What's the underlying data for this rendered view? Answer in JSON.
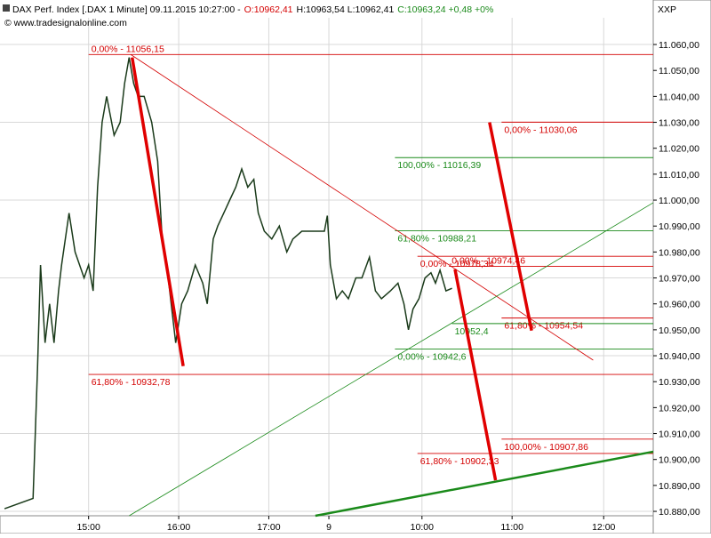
{
  "chart_data": {
    "type": "line",
    "title": "DAX Perf. Index [.DAX  1 Minute] 09.11.2015 10:27:00 -",
    "header_open": "O:10962,41",
    "header_range": "H:10963,54 L:10962,41",
    "header_close": "C:10963,24 +0,48 +0%",
    "copyright": "© www.tradesignalonline.com",
    "axis_code": "XXP",
    "x": [
      3,
      22,
      25,
      27,
      30,
      33,
      36,
      39,
      41,
      46,
      50,
      56,
      59,
      62,
      65,
      68,
      71,
      76,
      80,
      83,
      86,
      89,
      92,
      96,
      101,
      105,
      108,
      111,
      114,
      117,
      121,
      125,
      130,
      135,
      138,
      142,
      145,
      149,
      153,
      157,
      161,
      165,
      169,
      172,
      176,
      181,
      186,
      191,
      195,
      201,
      216,
      218,
      220,
      224,
      228,
      232,
      237,
      241,
      246,
      250,
      254,
      260,
      265,
      269,
      272,
      275,
      279,
      283,
      287,
      290,
      293,
      297,
      301
    ],
    "values": [
      10881,
      10885,
      10935,
      10975,
      10945,
      10960,
      10945,
      10965,
      10975,
      10995,
      10980,
      10970,
      10975,
      10965,
      11005,
      11030,
      11040,
      11025,
      11030,
      11045,
      11055,
      11045,
      11040,
      11040,
      11030,
      11015,
      10985,
      10975,
      10960,
      10945,
      10960,
      10965,
      10975,
      10968,
      10960,
      10985,
      10990,
      10995,
      11000,
      11005,
      11012,
      11005,
      11008,
      10995,
      10988,
      10985,
      10990,
      10980,
      10985,
      10988,
      10988,
      10994,
      10975,
      10962,
      10965,
      10962,
      10970,
      10970,
      10978,
      10965,
      10962,
      10965,
      10968,
      10960,
      10950,
      10958,
      10962,
      10970,
      10972,
      10968,
      10973,
      10965,
      10966
    ],
    "color": "#1a3a1a",
    "xlim": [
      0,
      435
    ],
    "ylim": [
      10878.3,
      11070.3
    ],
    "xticks": [
      {
        "value": 59,
        "label": "15:00"
      },
      {
        "value": 119,
        "label": "16:00"
      },
      {
        "value": 179,
        "label": "17:00"
      },
      {
        "value": 219,
        "label": "9"
      },
      {
        "value": 281,
        "label": "10:00"
      },
      {
        "value": 341,
        "label": "11:00"
      },
      {
        "value": 402,
        "label": "12:00"
      }
    ],
    "yticks": [
      {
        "value": 10880,
        "label": "10.880,00"
      },
      {
        "value": 10890,
        "label": "10.890,00"
      },
      {
        "value": 10900,
        "label": "10.900,00"
      },
      {
        "value": 10910,
        "label": "10.910,00"
      },
      {
        "value": 10920,
        "label": "10.920,00"
      },
      {
        "value": 10930,
        "label": "10.930,00"
      },
      {
        "value": 10940,
        "label": "10.940,00"
      },
      {
        "value": 10950,
        "label": "10.950,00"
      },
      {
        "value": 10960,
        "label": "10.960,00"
      },
      {
        "value": 10970,
        "label": "10.970,00"
      },
      {
        "value": 10980,
        "label": "10.980,00"
      },
      {
        "value": 10990,
        "label": "10.990,00"
      },
      {
        "value": 11000,
        "label": "11.000,00"
      },
      {
        "value": 11010,
        "label": "11.010,00"
      },
      {
        "value": 11020,
        "label": "11.020,00"
      },
      {
        "value": 11030,
        "label": "11.030,00"
      },
      {
        "value": 11040,
        "label": "11.040,00"
      },
      {
        "value": 11050,
        "label": "11.050,00"
      },
      {
        "value": 11060,
        "label": "11.060,00"
      }
    ],
    "grid": true,
    "levels": [
      {
        "label": "0,00% - 11056,15",
        "value": 11056.15,
        "xstart": 59,
        "color": "#d40000",
        "label_position": "above"
      },
      {
        "label": "61,80% - 10932,78",
        "value": 10932.78,
        "xstart": 59,
        "color": "#d40000",
        "label_position": "below"
      },
      {
        "label": "0,00% - 11030,06",
        "value": 11030.06,
        "xstart": 334,
        "color": "#d40000",
        "label_position": "below"
      },
      {
        "label": "61,80% - 10954,54",
        "value": 10954.54,
        "xstart": 334,
        "color": "#d40000",
        "label_position": "below"
      },
      {
        "label": "0,00% - 10978,34",
        "value": 10978.34,
        "xstart": 278,
        "color": "#d40000",
        "label_position": "below"
      },
      {
        "label": "0,00% - 10974,46",
        "value": 10974.46,
        "xstart": 299,
        "color": "#d40000",
        "label_position": "above"
      },
      {
        "label": "100,00% - 10907,86",
        "value": 10907.86,
        "xstart": 334,
        "color": "#d40000",
        "label_position": "below"
      },
      {
        "label": "61,80% - 10902,33",
        "value": 10902.33,
        "xstart": 278,
        "color": "#d40000",
        "label_position": "below"
      },
      {
        "label": "100,00% - 11016,39",
        "value": 11016.39,
        "xstart": 263,
        "color": "#1a8a1a",
        "label_position": "below"
      },
      {
        "label": "61,80% - 10988,21",
        "value": 10988.21,
        "xstart": 263,
        "color": "#1a8a1a",
        "label_position": "below"
      },
      {
        "label": "0,00% - 10942,6",
        "value": 10942.6,
        "xstart": 263,
        "color": "#1a8a1a",
        "label_position": "below"
      },
      {
        "label": "10952,4",
        "value": 10952.4,
        "xstart": 301,
        "color": "#1a8a1a",
        "label_position": "below"
      }
    ],
    "trend_lines": [
      {
        "x": [
          87,
          395
        ],
        "y": [
          11056.15,
          10938.3
        ],
        "color": "#d40000",
        "width": 0.8
      },
      {
        "x": [
          86,
          435
        ],
        "y": [
          10878.3,
          10999
        ],
        "color": "#1a8a1a",
        "width": 0.8
      },
      {
        "x": [
          210,
          435
        ],
        "y": [
          10878.3,
          10903
        ],
        "color": "#1a8a1a",
        "width": 2.5
      },
      {
        "x": [
          88,
          122
        ],
        "y": [
          11055,
          10936
        ],
        "color": "#e00000",
        "width": 3.5
      },
      {
        "x": [
          303,
          330
        ],
        "y": [
          10973.3,
          10892
        ],
        "color": "#e00000",
        "width": 3.5
      },
      {
        "x": [
          326,
          354
        ],
        "y": [
          11030,
          10949.7
        ],
        "color": "#e00000",
        "width": 3.5
      }
    ]
  }
}
